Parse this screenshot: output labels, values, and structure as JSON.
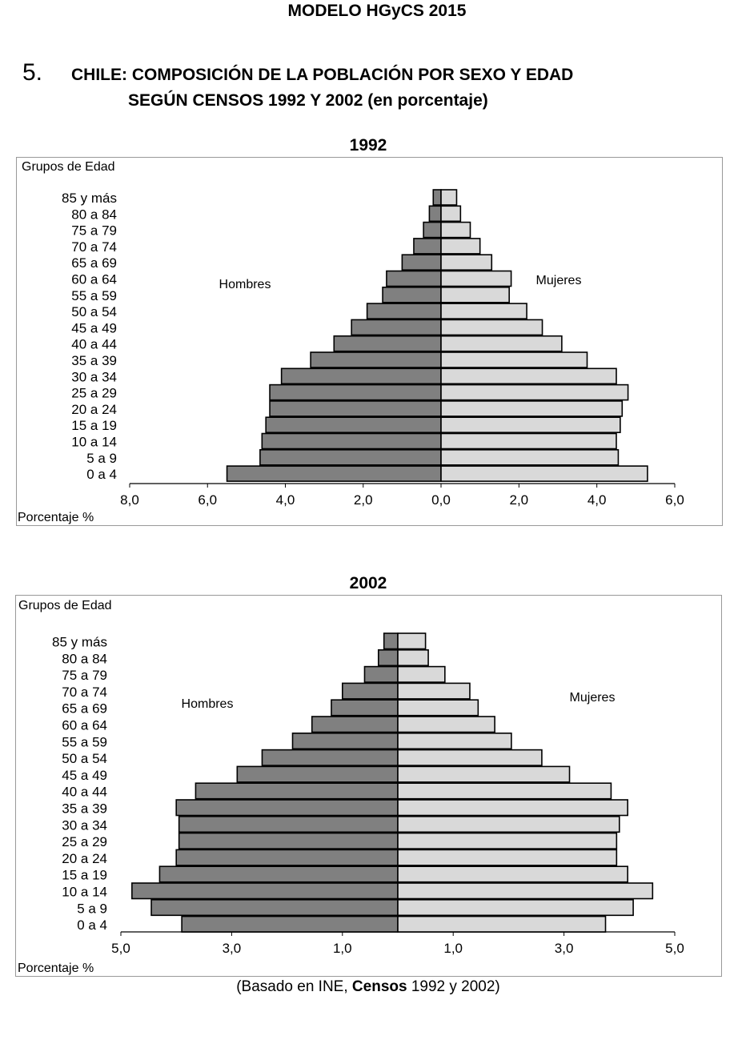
{
  "page_header": "MODELO HGyCS 2015",
  "question": {
    "number": "5.",
    "title_line1": "CHILE: COMPOSICIÓN DE LA POBLACIÓN POR SEXO Y EDAD",
    "title_line2": "SEGÚN CENSOS 1992 Y 2002 (en porcentaje)"
  },
  "source": {
    "prefix": "(Basado en INE, ",
    "bold": "Censos",
    "suffix": " 1992 y 2002)"
  },
  "colors": {
    "hombres": "#808080",
    "mujeres": "#d9d9d9",
    "border": "#000000"
  },
  "chart_data": [
    {
      "type": "bar",
      "title": "1992",
      "ylabel": "Grupos de Edad",
      "xlabel": "Porcentaje %",
      "left_label": "Hombres",
      "right_label": "Mujeres",
      "categories": [
        "85 y más",
        "80 a 84",
        "75 a 79",
        "70 a 74",
        "65 a 69",
        "60 a 64",
        "55 a 59",
        "50 a 54",
        "45 a 49",
        "40 a 44",
        "35 a 39",
        "30 a 34",
        "25 a 29",
        "20 a 24",
        "15 a 19",
        "10 a 14",
        "5  a  9",
        "0  a  4"
      ],
      "series": [
        {
          "name": "Hombres",
          "values": [
            0.2,
            0.3,
            0.45,
            0.7,
            1.0,
            1.4,
            1.5,
            1.9,
            2.3,
            2.75,
            3.35,
            4.1,
            4.4,
            4.4,
            4.5,
            4.6,
            4.65,
            5.5
          ]
        },
        {
          "name": "Mujeres",
          "values": [
            0.4,
            0.5,
            0.75,
            1.0,
            1.3,
            1.8,
            1.75,
            2.2,
            2.6,
            3.1,
            3.75,
            4.5,
            4.8,
            4.65,
            4.6,
            4.5,
            4.55,
            5.3
          ]
        }
      ],
      "xlim_left": 8.0,
      "xlim_right": 6.0,
      "tick_values": [
        -8,
        -6,
        -4,
        -2,
        0,
        2,
        4,
        6
      ],
      "tick_labels": [
        "8,0",
        "6,0",
        "4,0",
        "2,0",
        "0,0",
        "2,0",
        "4,0",
        "6,0"
      ]
    },
    {
      "type": "bar",
      "title": "2002",
      "ylabel": "Grupos de Edad",
      "xlabel": "Porcentaje %",
      "left_label": "Hombres",
      "right_label": "Mujeres",
      "categories": [
        "85 y más",
        "80 a 84",
        "75 a 79",
        "70 a 74",
        "65 a 69",
        "60 a 64",
        "55 a 59",
        "50 a 54",
        "45 a 49",
        "40 a 44",
        "35 a 39",
        "30 a 34",
        "25 a 29",
        "20 a 24",
        "15 a 19",
        "10 a 14",
        "5 a  9",
        "0  a  4"
      ],
      "series": [
        {
          "name": "Hombres",
          "values": [
            0.25,
            0.35,
            0.6,
            1.0,
            1.2,
            1.55,
            1.9,
            2.45,
            2.9,
            3.65,
            4.0,
            3.95,
            3.95,
            4.0,
            4.3,
            4.8,
            4.45,
            3.9
          ]
        },
        {
          "name": "Mujeres",
          "values": [
            0.5,
            0.55,
            0.85,
            1.3,
            1.45,
            1.75,
            2.05,
            2.6,
            3.1,
            3.85,
            4.15,
            4.0,
            3.95,
            3.95,
            4.15,
            4.6,
            4.25,
            3.75
          ]
        }
      ],
      "xlim_left": 5.0,
      "xlim_right": 5.0,
      "tick_values": [
        -5,
        -3,
        -1,
        1,
        3,
        5
      ],
      "tick_labels": [
        "5,0",
        "3,0",
        "1,0",
        "1,0",
        "3,0",
        "5,0"
      ]
    }
  ]
}
